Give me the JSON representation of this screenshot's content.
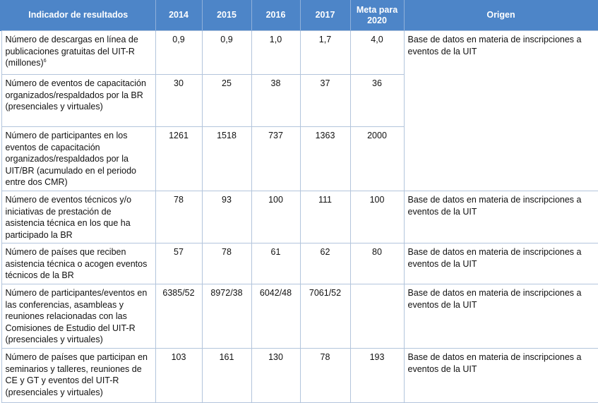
{
  "header": {
    "indicator": "Indicador de resultados",
    "y2014": "2014",
    "y2015": "2015",
    "y2016": "2016",
    "y2017": "2017",
    "target": "Meta para 2020",
    "source": "Origen"
  },
  "rows": [
    {
      "indicator": "Número de descargas en línea de publicaciones gratuitas del UIT-R (millones)",
      "footnote": "6",
      "y2014": "0,9",
      "y2015": "0,9",
      "y2016": "1,0",
      "y2017": "1,7",
      "target": "4,0",
      "source": "Base de datos en materia de inscripciones a eventos de la UIT"
    },
    {
      "indicator": "Número de eventos de capacitación organizados/respaldados por la BR (presenciales y virtuales)",
      "y2014": "30",
      "y2015": "25",
      "y2016": "38",
      "y2017": "37",
      "target": "36",
      "source": ""
    },
    {
      "indicator": "Número de participantes en los eventos de capacitación organizados/respaldados por la UIT/BR (acumulado en el periodo entre dos CMR)",
      "y2014": "1261",
      "y2015": "1518",
      "y2016": "737",
      "y2017": "1363",
      "target": "2000",
      "source": ""
    },
    {
      "indicator": "Número de eventos técnicos y/o iniciativas de prestación de asistencia técnica en los que ha participado la BR",
      "y2014": "78",
      "y2015": "93",
      "y2016": "100",
      "y2017": "111",
      "target": "100",
      "source": "Base de datos en materia de inscripciones a eventos de la UIT"
    },
    {
      "indicator": "Número de países que reciben asistencia técnica o acogen eventos técnicos de la BR",
      "y2014": "57",
      "y2015": "78",
      "y2016": "61",
      "y2017": "62",
      "target": "80",
      "source": "Base de datos en materia de inscripciones a eventos de la UIT"
    },
    {
      "indicator": "Número de participantes/eventos en las conferencias, asambleas y reuniones relacionadas con las Comisiones de Estudio del UIT-R (presenciales y virtuales)",
      "y2014": "6385/52",
      "y2015": "8972/38",
      "y2016": "6042/48",
      "y2017": "7061/52",
      "target": "",
      "source": "Base de datos en materia de inscripciones a eventos de la UIT"
    },
    {
      "indicator": "Número de países que participan en seminarios y talleres, reuniones de CE y GT y eventos del UIT-R (presenciales y virtuales)",
      "y2014": "103",
      "y2015": "161",
      "y2016": "130",
      "y2017": "78",
      "target": "193",
      "source": "Base de datos en materia de inscripciones a eventos de la UIT"
    }
  ]
}
